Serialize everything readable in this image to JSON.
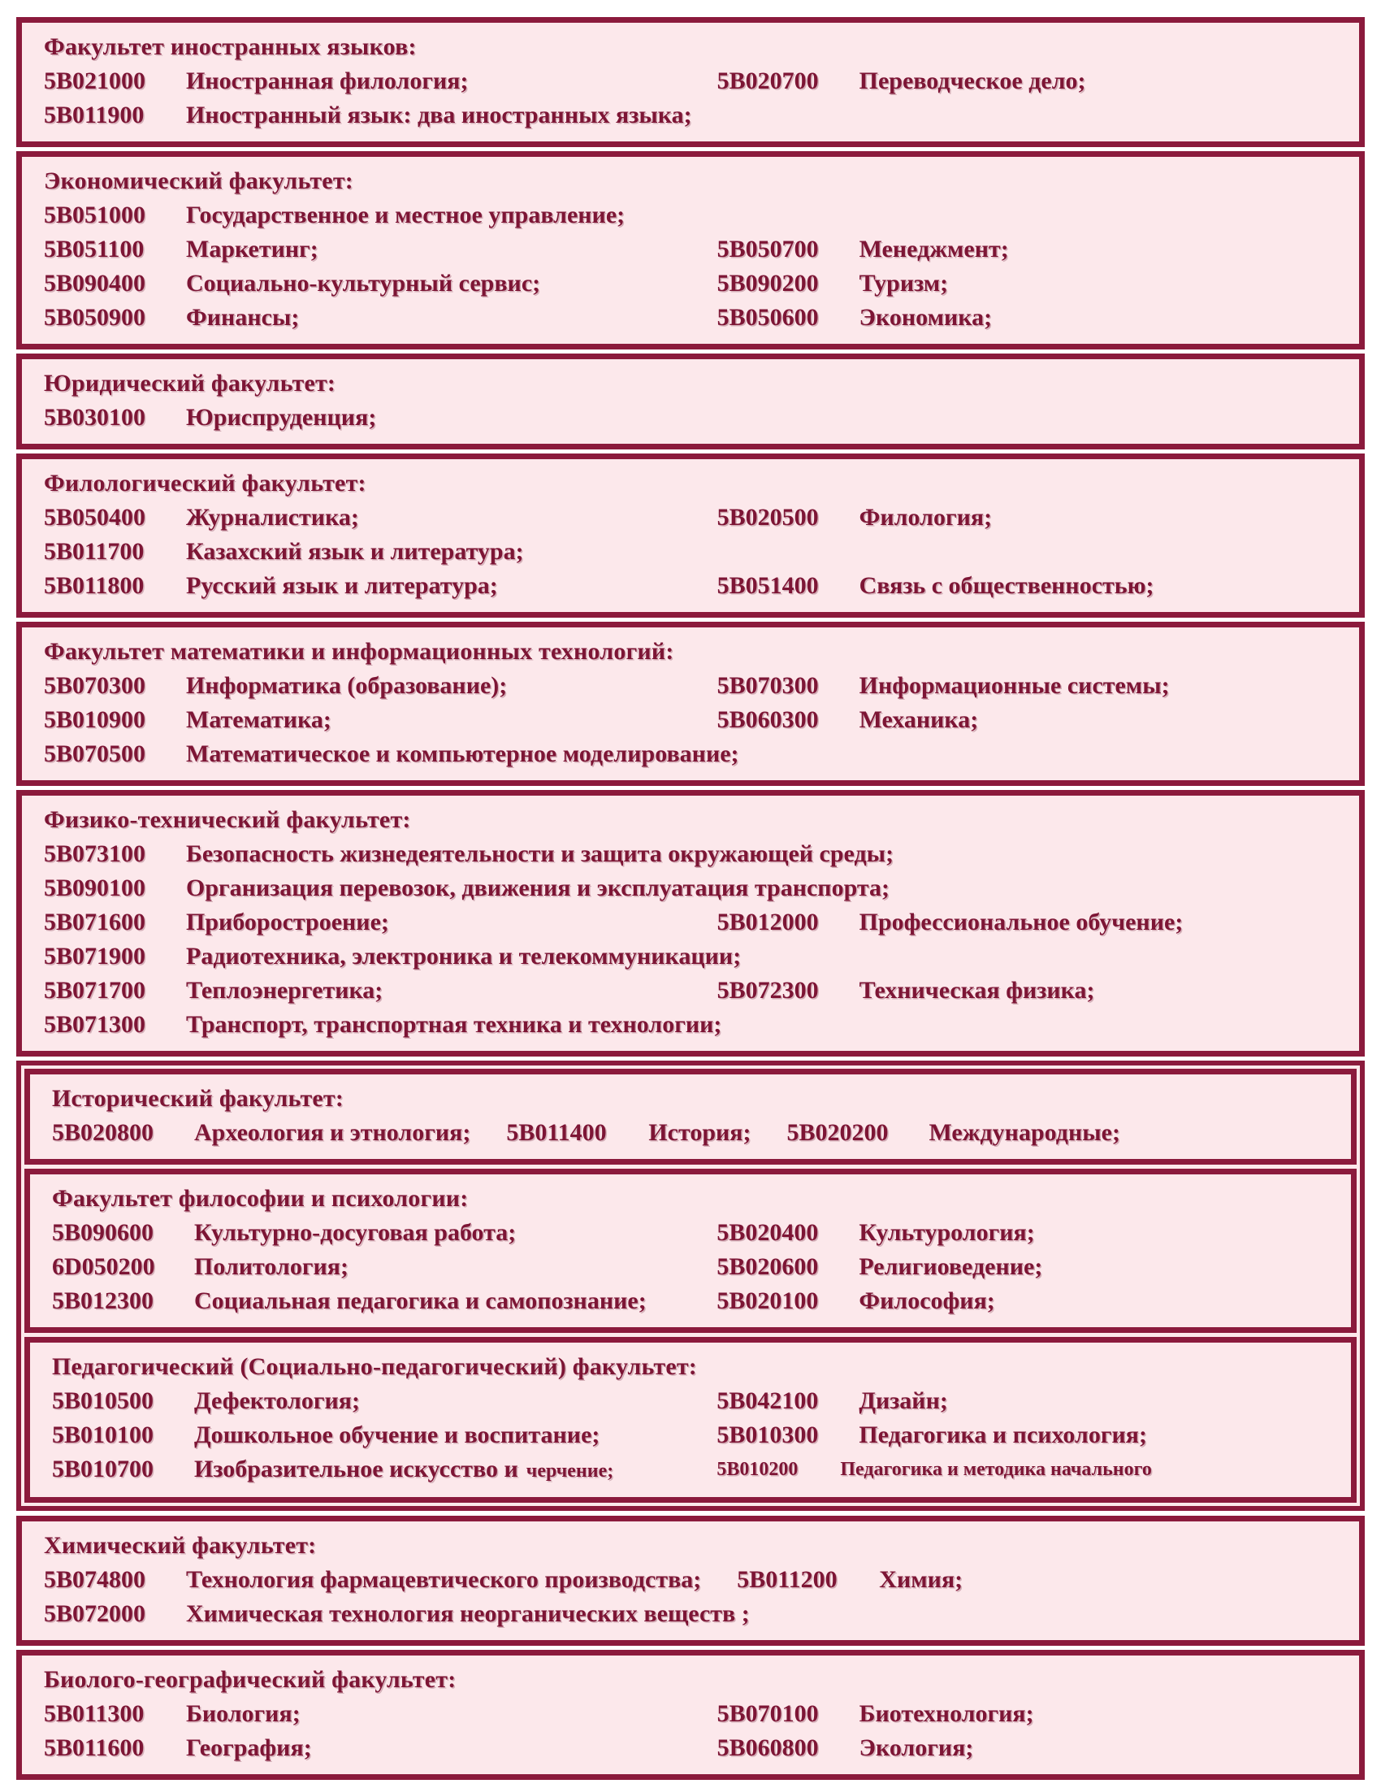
{
  "colors": {
    "border": "#8b1a3c",
    "text": "#7d1535",
    "box_bg": "#fce8eb",
    "page_bg": "#ffffff"
  },
  "blocks": [
    {
      "title": "Факультет иностранных языков:",
      "rows": [
        {
          "type": "grid",
          "cells": [
            {
              "code": "5B021000",
              "name": "Иностранная филология;"
            },
            {
              "code": "5B020700",
              "name": "Переводческое дело;"
            }
          ]
        },
        {
          "type": "span",
          "cells": [
            {
              "code": "5B011900",
              "name": "Иностранный язык: два иностранных языка;"
            }
          ]
        }
      ]
    },
    {
      "title": "Экономический факультет:",
      "rows": [
        {
          "type": "span",
          "cells": [
            {
              "code": "5B051000",
              "name": "Государственное и местное управление;"
            }
          ]
        },
        {
          "type": "grid",
          "cells": [
            {
              "code": "5B051100",
              "name": "Маркетинг;"
            },
            {
              "code": "5B050700",
              "name": "Менеджмент;"
            }
          ]
        },
        {
          "type": "grid",
          "cells": [
            {
              "code": "5B090400",
              "name": "Социально-культурный сервис;"
            },
            {
              "code": "5B090200",
              "name": "Туризм;"
            }
          ]
        },
        {
          "type": "grid",
          "cells": [
            {
              "code": "5B050900",
              "name": "Финансы;"
            },
            {
              "code": "5B050600",
              "name": "Экономика;"
            }
          ]
        }
      ]
    },
    {
      "title": "Юридический факультет:",
      "rows": [
        {
          "type": "span",
          "cells": [
            {
              "code": "5B030100",
              "name": "Юриспруденция;"
            }
          ]
        }
      ]
    },
    {
      "title": "Филологический факультет:",
      "rows": [
        {
          "type": "grid",
          "cells": [
            {
              "code": "5B050400",
              "name": "Журналистика;"
            },
            {
              "code": "5B020500",
              "name": "Филология;"
            }
          ]
        },
        {
          "type": "span",
          "cells": [
            {
              "code": "5B011700",
              "name": "Казахский язык и литература;"
            }
          ]
        },
        {
          "type": "grid",
          "cells": [
            {
              "code": "5B011800",
              "name": "Русский язык и литература;"
            },
            {
              "code": "5B051400",
              "name": "Связь с общественностью;"
            }
          ]
        }
      ]
    },
    {
      "title": "Факультет математики и информационных технологий:",
      "rows": [
        {
          "type": "grid",
          "cells": [
            {
              "code": "5B070300",
              "name": "Информатика (образование);"
            },
            {
              "code": "5B070300",
              "name": "Информационные системы;"
            }
          ]
        },
        {
          "type": "grid",
          "cells": [
            {
              "code": "5B010900",
              "name": "Математика;"
            },
            {
              "code": "5B060300",
              "name": "Механика;"
            }
          ]
        },
        {
          "type": "span",
          "cells": [
            {
              "code": "5B070500",
              "name": "Математическое и компьютерное моделирование;"
            }
          ]
        }
      ]
    },
    {
      "title": "Физико-технический факультет:",
      "rows": [
        {
          "type": "span",
          "cells": [
            {
              "code": "5B073100",
              "name": "Безопасность жизнедеятельности и защита окружающей среды;"
            }
          ]
        },
        {
          "type": "span",
          "cells": [
            {
              "code": "5B090100",
              "name": "Организация перевозок, движения и эксплуатация транспорта;"
            }
          ]
        },
        {
          "type": "grid",
          "cells": [
            {
              "code": "5B071600",
              "name": "Приборостроение;"
            },
            {
              "code": "5B012000",
              "name": "Профессиональное обучение;"
            }
          ]
        },
        {
          "type": "span",
          "cells": [
            {
              "code": "5B071900",
              "name": "Радиотехника, электроника и телекоммуникации;"
            }
          ]
        },
        {
          "type": "grid",
          "cells": [
            {
              "code": "5B071700",
              "name": "Теплоэнергетика;"
            },
            {
              "code": "5B072300",
              "name": "Техническая физика;"
            }
          ]
        },
        {
          "type": "span",
          "cells": [
            {
              "code": "5B071300",
              "name": "Транспорт, транспортная техника и технологии;"
            }
          ]
        }
      ]
    },
    {
      "grouped": true,
      "title": "Исторический факультет:",
      "rows": [
        {
          "type": "inline",
          "cells": [
            {
              "code": "5B020800",
              "name": "Археология и этнология;"
            },
            {
              "code": "5B011400",
              "name": "История;"
            },
            {
              "code": "5B020200",
              "name": "Международные;"
            }
          ]
        }
      ]
    },
    {
      "grouped": true,
      "title": "Факультет философии и психологии:",
      "rows": [
        {
          "type": "grid",
          "cells": [
            {
              "code": "5B090600",
              "name": "Культурно-досуговая работа;"
            },
            {
              "code": "5B020400",
              "name": "Культурология;"
            }
          ]
        },
        {
          "type": "grid",
          "cells": [
            {
              "code": "6D050200",
              "name": "Политология;"
            },
            {
              "code": "5B020600",
              "name": "Религиоведение;"
            }
          ]
        },
        {
          "type": "grid",
          "cells": [
            {
              "code": "5B012300",
              "name": "Социальная педагогика и самопознание;"
            },
            {
              "code": "5B020100",
              "name": "Философия;"
            }
          ]
        }
      ]
    },
    {
      "grouped": true,
      "title": "Педагогический (Социально-педагогический) факультет:",
      "rows": [
        {
          "type": "grid",
          "cells": [
            {
              "code": "5B010500",
              "name": "Дефектология;"
            },
            {
              "code": "5B042100",
              "name": "Дизайн;"
            }
          ]
        },
        {
          "type": "grid",
          "cells": [
            {
              "code": "5B010100",
              "name": "Дошкольное обучение и воспитание;"
            },
            {
              "code": "5B010300",
              "name": "Педагогика и психология;"
            }
          ]
        },
        {
          "type": "grid",
          "cells": [
            {
              "code": "5B010700",
              "name": "Изобразительное искусство и",
              "name_small": "черчение;"
            },
            {
              "code": "5B010200",
              "name": "Педагогика и методика начального",
              "small": true
            }
          ]
        }
      ]
    },
    {
      "title": "Химический факультет:",
      "rows": [
        {
          "type": "inline",
          "cells": [
            {
              "code": "5B074800",
              "name": "Технология фармацевтического производства;"
            },
            {
              "code": "5B011200",
              "name": "Химия;"
            }
          ]
        },
        {
          "type": "span",
          "cells": [
            {
              "code": "5B072000",
              "name": "Химическая технология неорганических веществ ;"
            }
          ]
        }
      ]
    },
    {
      "title": "Биолого-географический факультет:",
      "rows": [
        {
          "type": "grid",
          "cells": [
            {
              "code": "5B011300",
              "name": "Биология;"
            },
            {
              "code": "5B070100",
              "name": "Биотехнология;"
            }
          ]
        },
        {
          "type": "grid",
          "cells": [
            {
              "code": "5B011600",
              "name": "География;"
            },
            {
              "code": "5B060800",
              "name": "Экология;"
            }
          ]
        }
      ]
    }
  ]
}
